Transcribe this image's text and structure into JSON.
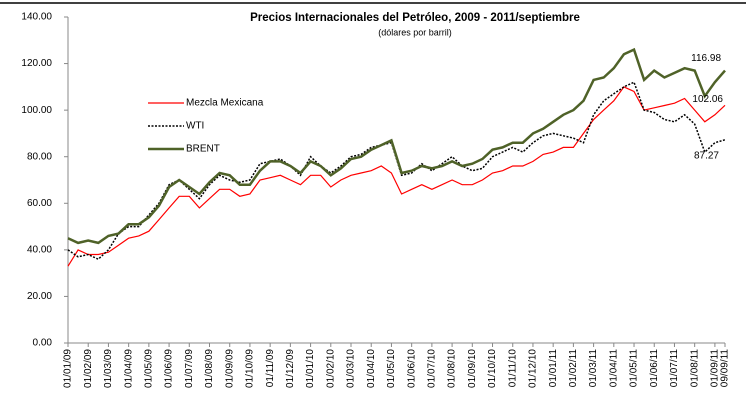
{
  "chart_data": {
    "type": "line",
    "title": "Precios Internacionales del Petróleo, 2009 - 2011/septiembre",
    "subtitle": "(dólares por barril)",
    "categories": [
      "01/01/09",
      null,
      "01/02/09",
      null,
      "01/03/09",
      null,
      "01/04/09",
      null,
      "01/05/09",
      null,
      "01/06/09",
      null,
      "01/07/09",
      null,
      "01/08/09",
      null,
      "01/09/09",
      null,
      "01/10/09",
      null,
      "01/11/09",
      null,
      "01/12/09",
      null,
      "01/01/10",
      null,
      "01/02/10",
      null,
      "01/03/10",
      null,
      "01/04/10",
      null,
      "01/05/10",
      null,
      "01/06/10",
      null,
      "01/07/10",
      null,
      "01/08/10",
      null,
      "01/09/10",
      null,
      "01/10/10",
      null,
      "01/11/10",
      null,
      "01/12/10",
      null,
      "01/01/11",
      null,
      "01/02/11",
      null,
      "01/03/11",
      null,
      "01/04/11",
      null,
      "01/05/11",
      null,
      "01/06/11",
      null,
      "01/07/11",
      null,
      "01/08/11",
      null,
      "01/09/11",
      "09/09/11"
    ],
    "series": [
      {
        "name": "Mezcla Mexicana",
        "color": "#ff0000",
        "dash": "solid",
        "width": 1.2,
        "values": [
          33,
          40,
          38,
          38,
          39,
          42,
          45,
          46,
          48,
          53,
          58,
          63,
          63,
          58,
          62,
          66,
          66,
          63,
          64,
          70,
          71,
          72,
          70,
          68,
          72,
          72,
          67,
          70,
          72,
          73,
          74,
          76,
          73,
          64,
          66,
          68,
          66,
          68,
          70,
          68,
          68,
          70,
          73,
          74,
          76,
          76,
          78,
          81,
          82,
          84,
          84,
          90,
          96,
          100,
          104,
          110,
          108,
          100,
          101,
          102,
          103,
          105,
          100,
          95,
          98,
          102.06
        ]
      },
      {
        "name": "WTI",
        "color": "#000000",
        "dash": "dotted",
        "width": 1.5,
        "values": [
          40,
          37,
          38,
          36,
          40,
          47,
          50,
          50,
          55,
          60,
          68,
          70,
          66,
          62,
          68,
          72,
          70,
          69,
          70,
          77,
          78,
          79,
          76,
          72,
          80,
          76,
          73,
          76,
          80,
          81,
          84,
          85,
          86,
          72,
          73,
          77,
          74,
          77,
          80,
          76,
          74,
          75,
          80,
          82,
          84,
          82,
          86,
          89,
          90,
          89,
          88,
          86,
          98,
          104,
          107,
          110,
          112,
          100,
          99,
          96,
          95,
          98,
          94,
          82,
          86,
          87.27
        ]
      },
      {
        "name": "BRENT",
        "color": "#4f6228",
        "dash": "solid",
        "width": 2.5,
        "values": [
          45,
          43,
          44,
          43,
          46,
          47,
          51,
          51,
          54,
          59,
          67,
          70,
          67,
          64,
          69,
          73,
          72,
          68,
          68,
          74,
          78,
          78,
          76,
          73,
          78,
          76,
          72,
          75,
          79,
          80,
          83,
          85,
          87,
          73,
          74,
          76,
          75,
          76,
          78,
          76,
          77,
          79,
          83,
          84,
          86,
          86,
          90,
          92,
          95,
          98,
          100,
          104,
          113,
          114,
          118,
          124,
          126,
          113,
          117,
          114,
          116,
          118,
          117,
          106,
          112,
          116.98
        ]
      }
    ],
    "ylim": [
      0,
      140
    ],
    "yticks": [
      {
        "value": 0,
        "label": "0.00"
      },
      {
        "value": 20,
        "label": "20.00"
      },
      {
        "value": 40,
        "label": "40.00"
      },
      {
        "value": 60,
        "label": "60.00"
      },
      {
        "value": 80,
        "label": "80.00"
      },
      {
        "value": 100,
        "label": "100.00"
      },
      {
        "value": 120,
        "label": "120.00"
      },
      {
        "value": 140,
        "label": "140.00"
      }
    ],
    "grid": false,
    "legend": "upper left"
  }
}
